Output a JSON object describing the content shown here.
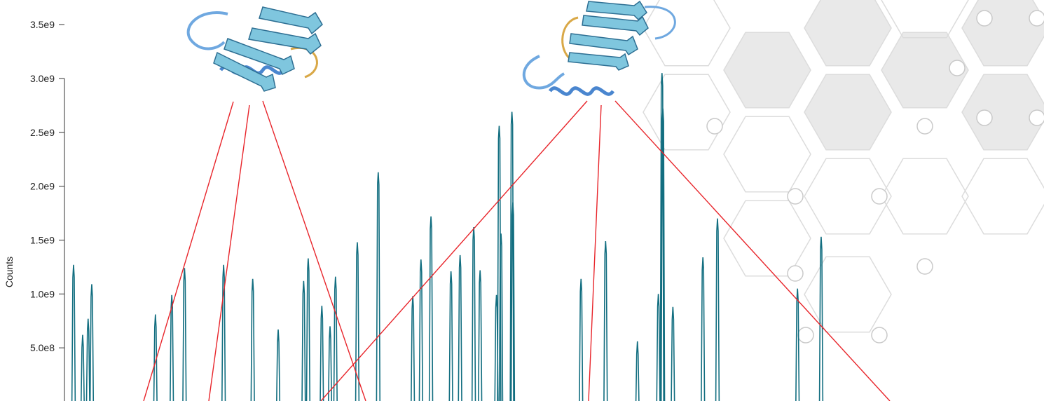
{
  "chart_data": {
    "type": "line",
    "title": "",
    "xlabel": "",
    "ylabel": "Counts",
    "ylim": [
      0,
      3500000000
    ],
    "xlim": [
      0,
      100
    ],
    "yticks": [
      {
        "value": 500000000,
        "label": "5.0e8"
      },
      {
        "value": 1000000000,
        "label": "1.0e9"
      },
      {
        "value": 1500000000,
        "label": "1.5e9"
      },
      {
        "value": 2000000000,
        "label": "2.0e9"
      },
      {
        "value": 2500000000,
        "label": "2.5e9"
      },
      {
        "value": 3000000000,
        "label": "3.0e9"
      },
      {
        "value": 3500000000,
        "label": "3.5e9"
      }
    ],
    "grid": false,
    "legend": "none",
    "peaks": [
      {
        "x": 1.0,
        "y": 1270000000
      },
      {
        "x": 2.0,
        "y": 620000000
      },
      {
        "x": 2.6,
        "y": 770000000
      },
      {
        "x": 3.0,
        "y": 1090000000
      },
      {
        "x": 10.0,
        "y": 810000000
      },
      {
        "x": 11.8,
        "y": 990000000
      },
      {
        "x": 13.2,
        "y": 1240000000
      },
      {
        "x": 17.5,
        "y": 1270000000
      },
      {
        "x": 20.7,
        "y": 1140000000
      },
      {
        "x": 23.5,
        "y": 670000000
      },
      {
        "x": 26.3,
        "y": 1120000000
      },
      {
        "x": 26.8,
        "y": 1330000000
      },
      {
        "x": 28.3,
        "y": 890000000
      },
      {
        "x": 29.2,
        "y": 700000000
      },
      {
        "x": 29.8,
        "y": 1160000000
      },
      {
        "x": 32.2,
        "y": 1480000000
      },
      {
        "x": 34.5,
        "y": 2130000000
      },
      {
        "x": 38.3,
        "y": 980000000
      },
      {
        "x": 39.2,
        "y": 1320000000
      },
      {
        "x": 40.3,
        "y": 1720000000
      },
      {
        "x": 42.5,
        "y": 1210000000
      },
      {
        "x": 43.5,
        "y": 1360000000
      },
      {
        "x": 45.0,
        "y": 1620000000
      },
      {
        "x": 45.7,
        "y": 1220000000
      },
      {
        "x": 47.5,
        "y": 990000000
      },
      {
        "x": 47.8,
        "y": 2560000000
      },
      {
        "x": 48.0,
        "y": 1560000000
      },
      {
        "x": 49.2,
        "y": 2690000000
      },
      {
        "x": 49.3,
        "y": 1850000000
      },
      {
        "x": 56.8,
        "y": 1140000000
      },
      {
        "x": 59.5,
        "y": 1490000000
      },
      {
        "x": 63.0,
        "y": 560000000
      },
      {
        "x": 65.3,
        "y": 1000000000
      },
      {
        "x": 65.7,
        "y": 3050000000
      },
      {
        "x": 65.8,
        "y": 2720000000
      },
      {
        "x": 66.9,
        "y": 880000000
      },
      {
        "x": 70.2,
        "y": 1340000000
      },
      {
        "x": 71.8,
        "y": 1700000000
      },
      {
        "x": 80.6,
        "y": 1050000000
      },
      {
        "x": 83.2,
        "y": 1530000000
      }
    ]
  },
  "overlay": {
    "line_color": "#e8252b",
    "trace_color": "#126e80",
    "protein_color": "#5fb7d6",
    "hex_fill_color": "#e9e9e9",
    "hex_stroke_color": "#dcdcdc",
    "structure_icon": "protein-ribbon-icon",
    "background_pattern": "hexagon-pattern"
  }
}
